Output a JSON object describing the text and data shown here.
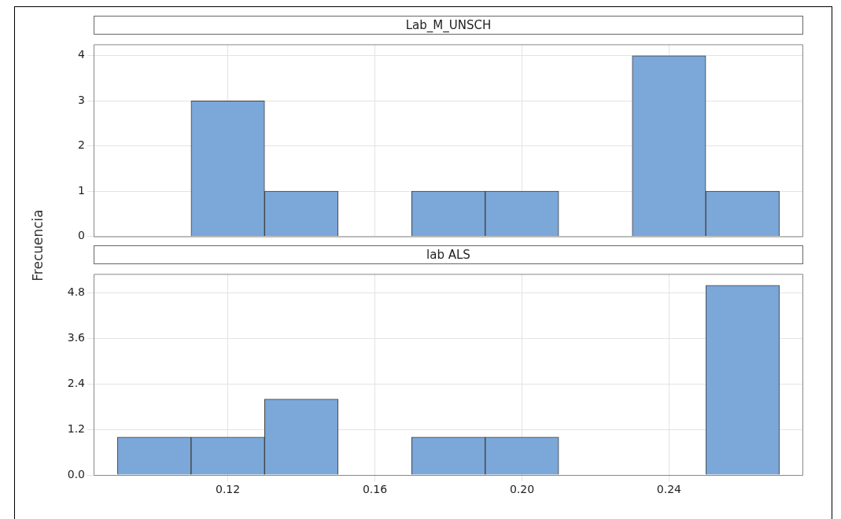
{
  "chart_data": [
    {
      "type": "histogram",
      "title": "Lab_M_UNSCH",
      "ylabel": "Frecuencia",
      "bins": [
        0.09,
        0.11,
        0.13,
        0.15,
        0.17,
        0.19,
        0.21,
        0.23,
        0.25,
        0.27
      ],
      "values": [
        0,
        3,
        1,
        0,
        1,
        1,
        0,
        4,
        1
      ],
      "color": "#7ba7d9",
      "xlim": [
        0.0835,
        0.2765
      ],
      "xticks": [
        0.12,
        0.16,
        0.2,
        0.24
      ],
      "ylim": [
        0,
        4.25
      ],
      "yticks": [
        0,
        1,
        2,
        3,
        4
      ],
      "grid": true,
      "tick_labels": "y"
    },
    {
      "type": "histogram",
      "title": "lab ALS",
      "bins": [
        0.09,
        0.11,
        0.13,
        0.15,
        0.17,
        0.19,
        0.21,
        0.23,
        0.25,
        0.27
      ],
      "values": [
        1,
        1,
        2,
        0,
        1,
        1,
        0,
        0,
        5
      ],
      "color": "#7ba7d9",
      "xlim": [
        0.0835,
        0.2765
      ],
      "xticks": [
        {
          "value": 0.12,
          "label": "0.12"
        },
        {
          "value": 0.16,
          "label": "0.16"
        },
        {
          "value": 0.2,
          "label": "0.20"
        },
        {
          "value": 0.24,
          "label": "0.24"
        }
      ],
      "ylim": [
        0,
        5.3
      ],
      "yticks": [
        {
          "value": 0,
          "label": "0.0"
        },
        {
          "value": 1.2,
          "label": "1.2"
        },
        {
          "value": 2.4,
          "label": "2.4"
        },
        {
          "value": 3.6,
          "label": "3.6"
        },
        {
          "value": 4.8,
          "label": "4.8"
        }
      ],
      "grid": true
    }
  ]
}
